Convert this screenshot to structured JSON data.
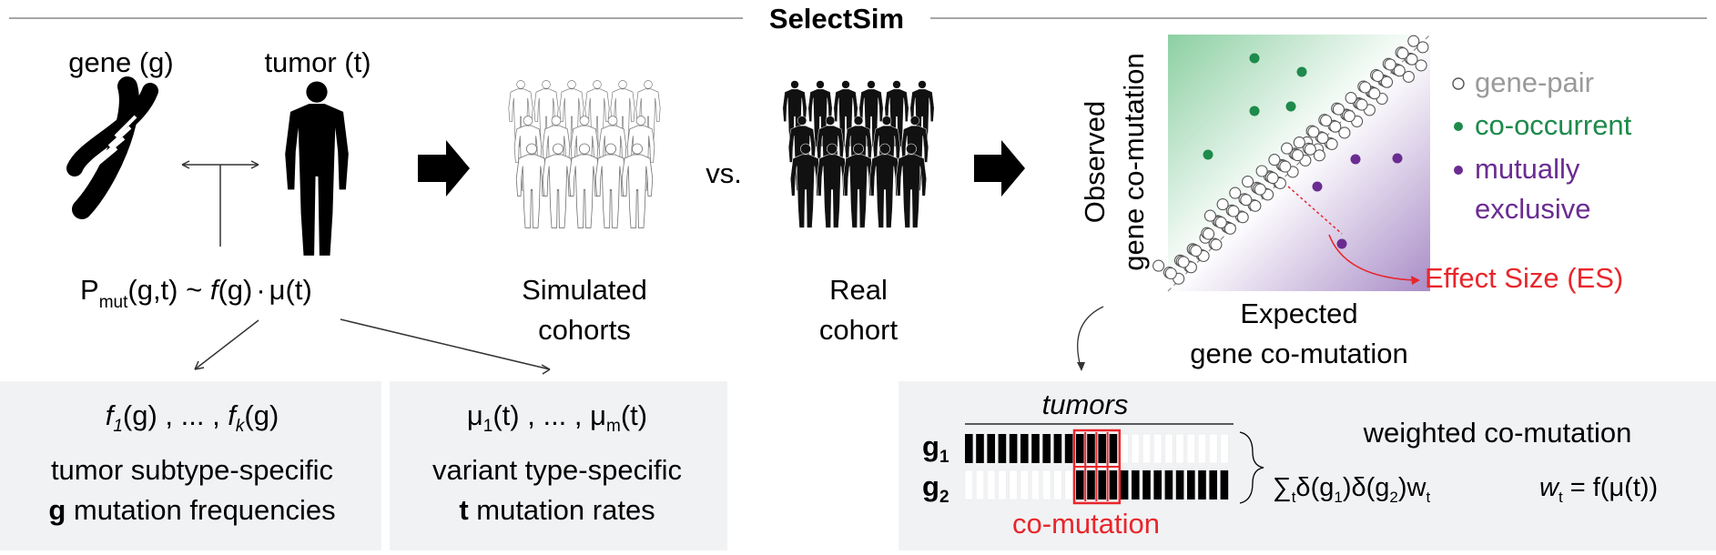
{
  "title": "SelectSim",
  "model": {
    "gene_label": "gene (g)",
    "tumor_label": "tumor (t)",
    "formula": {
      "P": "P",
      "mut_sub": "mut",
      "args": "(g,t) ~ ",
      "f": "f",
      "fg": "(g)",
      "dot": "·",
      "mu": "μ(t)"
    }
  },
  "simulated_label": [
    "Simulated",
    "cohorts"
  ],
  "vs_label": "vs.",
  "real_label": [
    "Real",
    "cohort"
  ],
  "box_f": {
    "f1": "f",
    "sub1": "1",
    "mid": "(g) , ... , ",
    "fk": "f",
    "subk": "k",
    "end": "(g)",
    "line1": "tumor subtype-specific",
    "bold": "g",
    "line2": " mutation frequencies"
  },
  "box_mu": {
    "mu1": "μ",
    "sub1": "1",
    "mid": "(t) , ... , μ",
    "subm": "m",
    "end": "(t)",
    "line1": "variant type-specific",
    "bold": "t",
    "line2": " mutation rates"
  },
  "scatter": {
    "ylabel_line1": "Observed",
    "ylabel_line2": "gene co-mutation",
    "xlabel_line1": "Expected",
    "xlabel_line2": "gene co-mutation",
    "effect_label": "Effect Size (ES)",
    "legend": [
      {
        "label": "gene-pair",
        "color": "#9a9a9a",
        "marker": "open"
      },
      {
        "label": "co-occurrent",
        "color": "#1e8a4c",
        "marker": "filled"
      },
      {
        "label": "mutually",
        "label2": "exclusive",
        "color": "#6a2c91",
        "marker": "filled"
      }
    ],
    "colors": {
      "green": "#1e8a4c",
      "purple": "#6a2c91",
      "red": "#e8262b"
    }
  },
  "tumors": {
    "header": "tumors",
    "g1": "g",
    "g1_sub": "1",
    "g2": "g",
    "g2_sub": "2",
    "comutation": "co-mutation",
    "weighted": "weighted co-mutation",
    "sum": "∑",
    "sum_sub": "t",
    "delta1": "δ(g",
    "d1sub": "1",
    "delta2": ")δ(g",
    "d2sub": "2",
    "w": ")w",
    "wsub": "t",
    "wt": "w",
    "wt_sub": "t",
    "wt_eq": " = f(μ(t))",
    "g1_row": [
      1,
      1,
      1,
      1,
      1,
      1,
      1,
      1,
      1,
      1,
      1,
      1,
      1,
      1,
      0,
      0,
      0,
      0,
      0,
      0,
      0,
      0,
      0,
      0
    ],
    "g2_row": [
      0,
      0,
      0,
      0,
      0,
      0,
      0,
      0,
      0,
      0,
      1,
      1,
      1,
      1,
      1,
      1,
      1,
      1,
      1,
      1,
      1,
      1,
      1,
      1
    ]
  }
}
